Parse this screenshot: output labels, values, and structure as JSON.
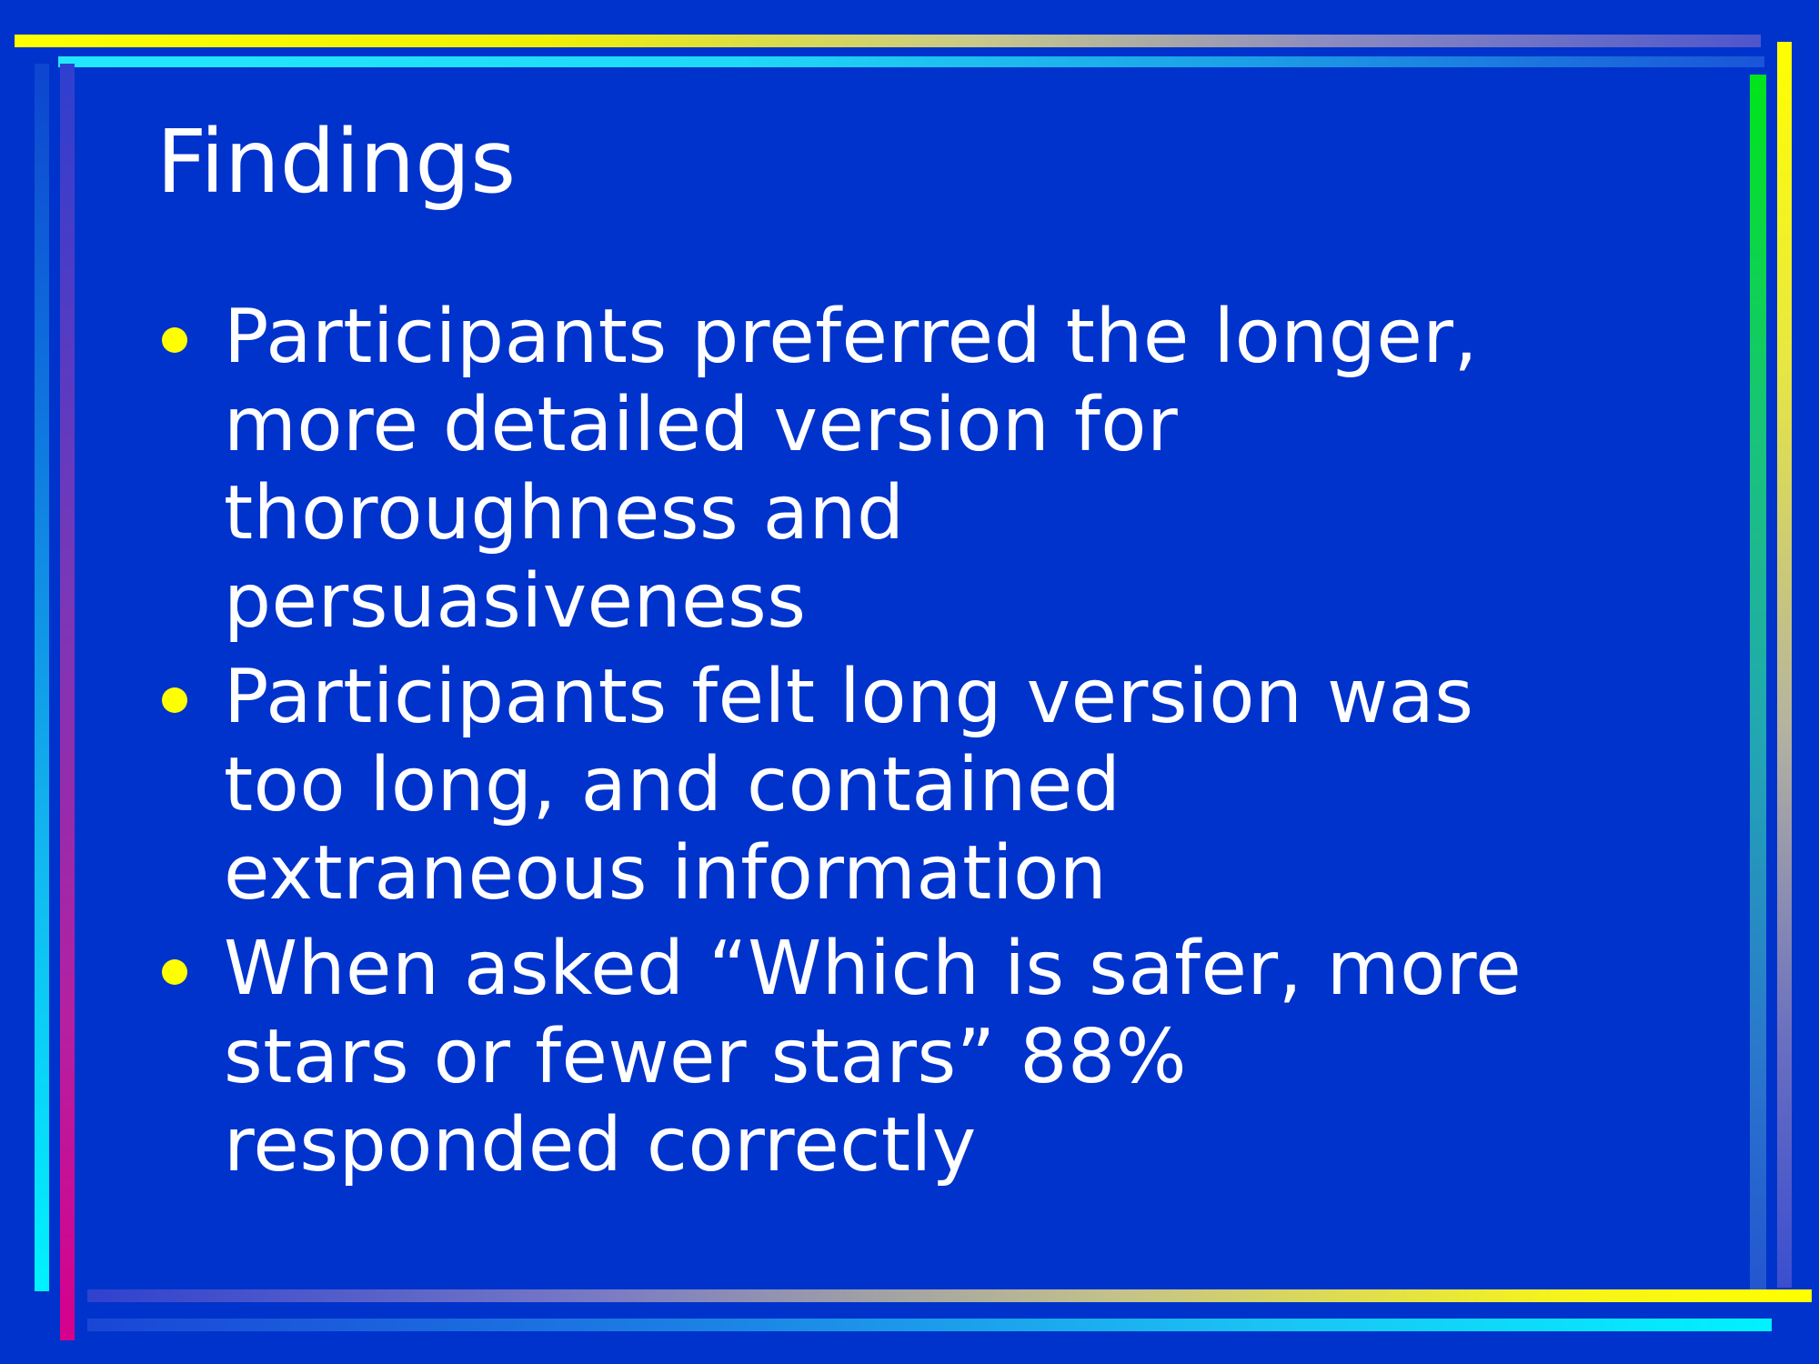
{
  "slide": {
    "title": "Findings",
    "bullets": [
      {
        "lines": [
          "Participants preferred the longer,",
          "more detailed version for",
          "thoroughness and",
          "persuasiveness"
        ]
      },
      {
        "lines": [
          "Participants felt long version was",
          "too long, and contained",
          "extraneous information"
        ]
      },
      {
        "lines": [
          "When asked “Which is safer, more",
          "stars or fewer stars” 88%",
          "responded correctly"
        ]
      }
    ]
  },
  "colors": {
    "background": "#0033CC",
    "text": "#FFFFFF",
    "bullet": "#FFFF00",
    "accent_yellow": "#FFFF00",
    "accent_cyan": "#00F2FF",
    "accent_green": "#00E51A",
    "accent_magenta": "#D6008C"
  }
}
